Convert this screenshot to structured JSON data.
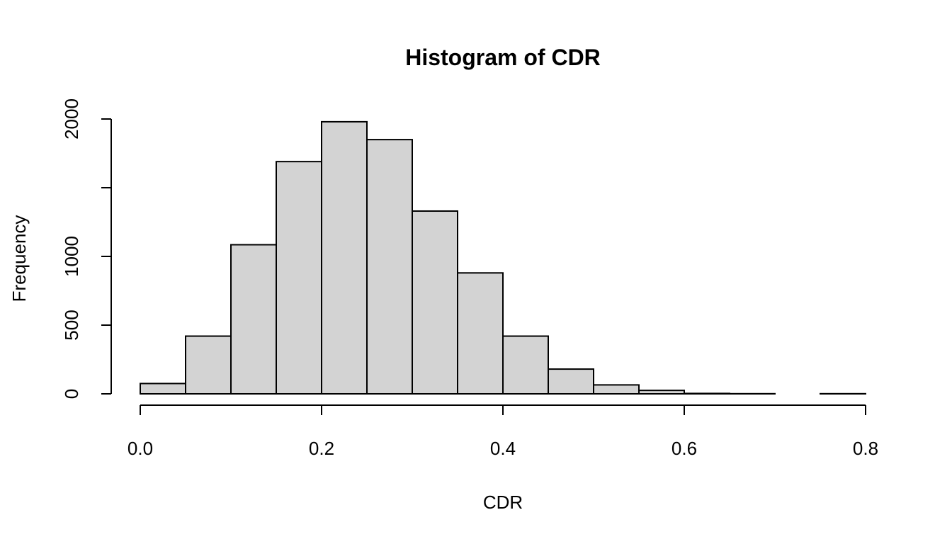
{
  "chart_data": {
    "type": "bar",
    "title": "Histogram of CDR",
    "xlabel": "CDR",
    "ylabel": "Frequency",
    "bins": [
      {
        "from": 0.0,
        "to": 0.05,
        "count": 75
      },
      {
        "from": 0.05,
        "to": 0.1,
        "count": 420
      },
      {
        "from": 0.1,
        "to": 0.15,
        "count": 1085
      },
      {
        "from": 0.15,
        "to": 0.2,
        "count": 1690
      },
      {
        "from": 0.2,
        "to": 0.25,
        "count": 1980
      },
      {
        "from": 0.25,
        "to": 0.3,
        "count": 1850
      },
      {
        "from": 0.3,
        "to": 0.35,
        "count": 1330
      },
      {
        "from": 0.35,
        "to": 0.4,
        "count": 880
      },
      {
        "from": 0.4,
        "to": 0.45,
        "count": 420
      },
      {
        "from": 0.45,
        "to": 0.5,
        "count": 180
      },
      {
        "from": 0.5,
        "to": 0.55,
        "count": 65
      },
      {
        "from": 0.55,
        "to": 0.6,
        "count": 25
      },
      {
        "from": 0.6,
        "to": 0.65,
        "count": 3
      },
      {
        "from": 0.65,
        "to": 0.7,
        "count": 1
      },
      {
        "from": 0.7,
        "to": 0.75,
        "count": 0
      },
      {
        "from": 0.75,
        "to": 0.8,
        "count": 1
      }
    ],
    "xlim": [
      0.0,
      0.8
    ],
    "ylim": [
      0,
      2000
    ],
    "x_ticks": [
      "0.0",
      "0.2",
      "0.4",
      "0.6",
      "0.8"
    ],
    "y_ticks": [
      "0",
      "500",
      "1000",
      "2000"
    ],
    "bar_fill": "#d3d3d3",
    "bar_stroke": "#000000",
    "grid": false,
    "legend": "none"
  }
}
